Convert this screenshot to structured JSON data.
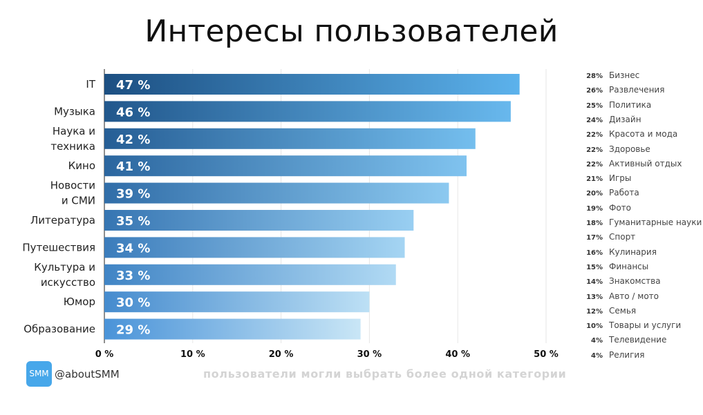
{
  "title": "Интересы пользователей",
  "chart_data": {
    "type": "bar",
    "orientation": "horizontal",
    "categories": [
      "IT",
      "Музыка",
      "Наука и техника",
      "Кино",
      "Новости и СМИ",
      "Литература",
      "Путешествия",
      "Культура и искусство",
      "Юмор",
      "Образование"
    ],
    "category_lines": [
      [
        "IT"
      ],
      [
        "Музыка"
      ],
      [
        "Наука и",
        "техника"
      ],
      [
        "Кино"
      ],
      [
        "Новости",
        "и СМИ"
      ],
      [
        "Литература"
      ],
      [
        "Путешествия"
      ],
      [
        "Культура и",
        "искусство"
      ],
      [
        "Юмор"
      ],
      [
        "Образование"
      ]
    ],
    "values": [
      47,
      46,
      42,
      41,
      39,
      35,
      34,
      33,
      30,
      29
    ],
    "value_labels": [
      "47 %",
      "46 %",
      "42 %",
      "41 %",
      "39 %",
      "35 %",
      "34 %",
      "33 %",
      "30 %",
      "29 %"
    ],
    "xlim": [
      0,
      50
    ],
    "xticks": [
      0,
      10,
      20,
      30,
      40,
      50
    ],
    "xtick_labels": [
      "0 %",
      "10 %",
      "20 %",
      "30 %",
      "40 %",
      "50 %"
    ],
    "grid": true,
    "bar_color_dark": "#1c4f82",
    "bar_color_light": "#5cb2ec"
  },
  "side_list": [
    {
      "pct": "28%",
      "label": "Бизнес"
    },
    {
      "pct": "26%",
      "label": "Развлечения"
    },
    {
      "pct": "25%",
      "label": "Политика"
    },
    {
      "pct": "24%",
      "label": "Дизайн"
    },
    {
      "pct": "22%",
      "label": "Красота и мода"
    },
    {
      "pct": "22%",
      "label": "Здоровье"
    },
    {
      "pct": "22%",
      "label": "Активный отдых"
    },
    {
      "pct": "21%",
      "label": "Игры"
    },
    {
      "pct": "20%",
      "label": "Работа"
    },
    {
      "pct": "19%",
      "label": "Фото"
    },
    {
      "pct": "18%",
      "label": "Гуманитарные науки"
    },
    {
      "pct": "17%",
      "label": "Спорт"
    },
    {
      "pct": "16%",
      "label": "Кулинария"
    },
    {
      "pct": "15%",
      "label": "Финансы"
    },
    {
      "pct": "14%",
      "label": "Знакомства"
    },
    {
      "pct": "13%",
      "label": "Авто / мото"
    },
    {
      "pct": "12%",
      "label": "Семья"
    },
    {
      "pct": "10%",
      "label": "Товары и услуги"
    },
    {
      "pct": "4%",
      "label": "Телевидение"
    },
    {
      "pct": "4%",
      "label": "Религия"
    }
  ],
  "brand": {
    "badge": "SMM",
    "handle": "@aboutSMM",
    "color": "#47a7ea"
  },
  "footnote": "пользователи могли выбрать более одной категории"
}
